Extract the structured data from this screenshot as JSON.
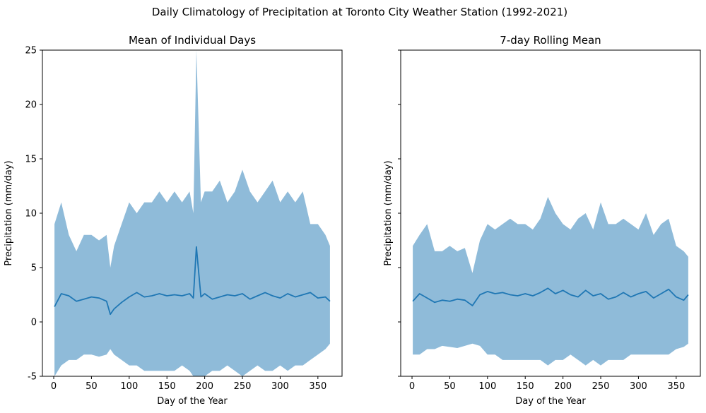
{
  "figure": {
    "suptitle": "Daily Climatology of Precipitation at Toronto City Weather Station (1992-2021)"
  },
  "colors": {
    "line": "#1f77b4",
    "band": "#8fbbd9",
    "axes": "#000000",
    "background": "#ffffff"
  },
  "chart_data": [
    {
      "type": "line",
      "title": "Mean of Individual Days",
      "xlabel": "Day of the Year",
      "ylabel": "Precipitation (mm/day)",
      "xlim": [
        -15,
        382
      ],
      "ylim": [
        -5,
        25
      ],
      "xticks": [
        0,
        50,
        100,
        150,
        200,
        250,
        300,
        350
      ],
      "yticks": [
        -5,
        0,
        5,
        10,
        15,
        20,
        25
      ],
      "grid": false,
      "legend": "none",
      "series": [
        {
          "kind": "mean",
          "x_range": [
            1,
            366
          ],
          "x": [
            1,
            10,
            20,
            30,
            40,
            50,
            60,
            70,
            75,
            80,
            90,
            100,
            110,
            120,
            130,
            140,
            150,
            160,
            170,
            180,
            185,
            189,
            195,
            200,
            210,
            220,
            230,
            240,
            250,
            260,
            270,
            280,
            290,
            300,
            310,
            320,
            330,
            340,
            350,
            360,
            366
          ],
          "values": [
            1.4,
            2.6,
            2.4,
            1.9,
            2.1,
            2.3,
            2.2,
            1.9,
            0.7,
            1.2,
            1.8,
            2.3,
            2.7,
            2.3,
            2.4,
            2.6,
            2.4,
            2.5,
            2.4,
            2.6,
            2.2,
            6.9,
            2.3,
            2.6,
            2.1,
            2.3,
            2.5,
            2.4,
            2.6,
            2.1,
            2.4,
            2.7,
            2.4,
            2.2,
            2.6,
            2.3,
            2.5,
            2.7,
            2.2,
            2.3,
            1.9
          ]
        },
        {
          "kind": "band",
          "x": [
            1,
            10,
            20,
            30,
            40,
            50,
            60,
            70,
            75,
            80,
            90,
            100,
            110,
            120,
            130,
            140,
            150,
            160,
            170,
            180,
            185,
            189,
            195,
            200,
            210,
            220,
            230,
            240,
            250,
            260,
            270,
            280,
            290,
            300,
            310,
            320,
            330,
            340,
            350,
            360,
            366
          ],
          "upper": [
            9,
            11,
            8,
            6.5,
            8,
            8,
            7.5,
            8,
            5,
            7,
            9,
            11,
            10,
            11,
            11,
            12,
            11,
            12,
            11,
            12,
            10,
            25,
            11,
            12,
            12,
            13,
            11,
            12,
            14,
            12,
            11,
            12,
            13,
            11,
            12,
            11,
            12,
            9,
            9,
            8,
            7
          ],
          "lower": [
            -5,
            -4,
            -3.5,
            -3.5,
            -3,
            -3,
            -3.2,
            -3,
            -2.5,
            -3,
            -3.5,
            -4,
            -4,
            -4.5,
            -4.5,
            -4.5,
            -4.5,
            -4.5,
            -4,
            -4.5,
            -5,
            -5,
            -5,
            -5,
            -4.5,
            -4.5,
            -4,
            -4.5,
            -5,
            -4.5,
            -4,
            -4.5,
            -4.5,
            -4,
            -4.5,
            -4,
            -4,
            -3.5,
            -3,
            -2.5,
            -2
          ]
        }
      ]
    },
    {
      "type": "line",
      "title": "7-day Rolling Mean",
      "xlabel": "Day of the Year",
      "ylabel": "Precipitation (mm/day)",
      "xlim": [
        -15,
        382
      ],
      "ylim": [
        -5,
        25
      ],
      "xticks": [
        0,
        50,
        100,
        150,
        200,
        250,
        300,
        350
      ],
      "yticks": [
        -5,
        0,
        5,
        10,
        15,
        20,
        25
      ],
      "ytick_labels_visible": false,
      "grid": false,
      "legend": "none",
      "series": [
        {
          "kind": "mean",
          "x": [
            1,
            10,
            20,
            30,
            40,
            50,
            60,
            70,
            80,
            90,
            100,
            110,
            120,
            130,
            140,
            150,
            160,
            170,
            180,
            190,
            200,
            210,
            220,
            230,
            240,
            250,
            260,
            270,
            280,
            290,
            300,
            310,
            320,
            330,
            340,
            350,
            360,
            366
          ],
          "values": [
            1.9,
            2.6,
            2.2,
            1.8,
            2.0,
            1.9,
            2.1,
            2.0,
            1.5,
            2.5,
            2.8,
            2.6,
            2.7,
            2.5,
            2.4,
            2.6,
            2.4,
            2.7,
            3.1,
            2.6,
            2.9,
            2.5,
            2.3,
            2.9,
            2.4,
            2.6,
            2.1,
            2.3,
            2.7,
            2.3,
            2.6,
            2.8,
            2.2,
            2.6,
            3.0,
            2.3,
            2.0,
            2.5
          ]
        },
        {
          "kind": "band",
          "x": [
            1,
            10,
            20,
            30,
            40,
            50,
            60,
            70,
            80,
            90,
            100,
            110,
            120,
            130,
            140,
            150,
            160,
            170,
            180,
            190,
            200,
            210,
            220,
            230,
            240,
            250,
            260,
            270,
            280,
            290,
            300,
            310,
            320,
            330,
            340,
            350,
            360,
            366
          ],
          "upper": [
            7,
            8,
            9,
            6.5,
            6.5,
            7,
            6.5,
            6.8,
            4.5,
            7.5,
            9,
            8.5,
            9,
            9.5,
            9,
            9,
            8.5,
            9.5,
            11.5,
            10,
            9,
            8.5,
            9.5,
            10,
            8.5,
            11,
            9,
            9,
            9.5,
            9,
            8.5,
            10,
            8,
            9,
            9.5,
            7,
            6.5,
            6
          ],
          "lower": [
            -3,
            -3,
            -2.5,
            -2.5,
            -2.2,
            -2.3,
            -2.4,
            -2.2,
            -2,
            -2.2,
            -3,
            -3,
            -3.5,
            -3.5,
            -3.5,
            -3.5,
            -3.5,
            -3.5,
            -4,
            -3.5,
            -3.5,
            -3,
            -3.5,
            -4,
            -3.5,
            -4,
            -3.5,
            -3.5,
            -3.5,
            -3,
            -3,
            -3,
            -3,
            -3,
            -3,
            -2.5,
            -2.3,
            -2
          ]
        }
      ]
    }
  ]
}
